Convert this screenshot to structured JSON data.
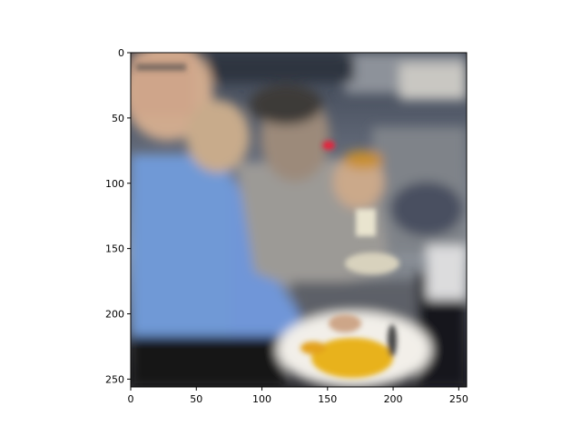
{
  "chart_data": {
    "type": "heatmap",
    "image_content": "blurry photo of people eating in stadium seating",
    "x_ticks": [
      0,
      50,
      100,
      150,
      200,
      250
    ],
    "y_ticks": [
      0,
      50,
      100,
      150,
      200,
      250
    ],
    "xlim": [
      0,
      256
    ],
    "ylim": [
      256,
      0
    ],
    "colors": {
      "background_top": "#3e4654",
      "shirt_blue": "#6f96d8",
      "shirt_gray": "#9a9a98",
      "skin": "#c9a98f",
      "plate": "#f2efe9",
      "food": "#e8b21e"
    }
  }
}
